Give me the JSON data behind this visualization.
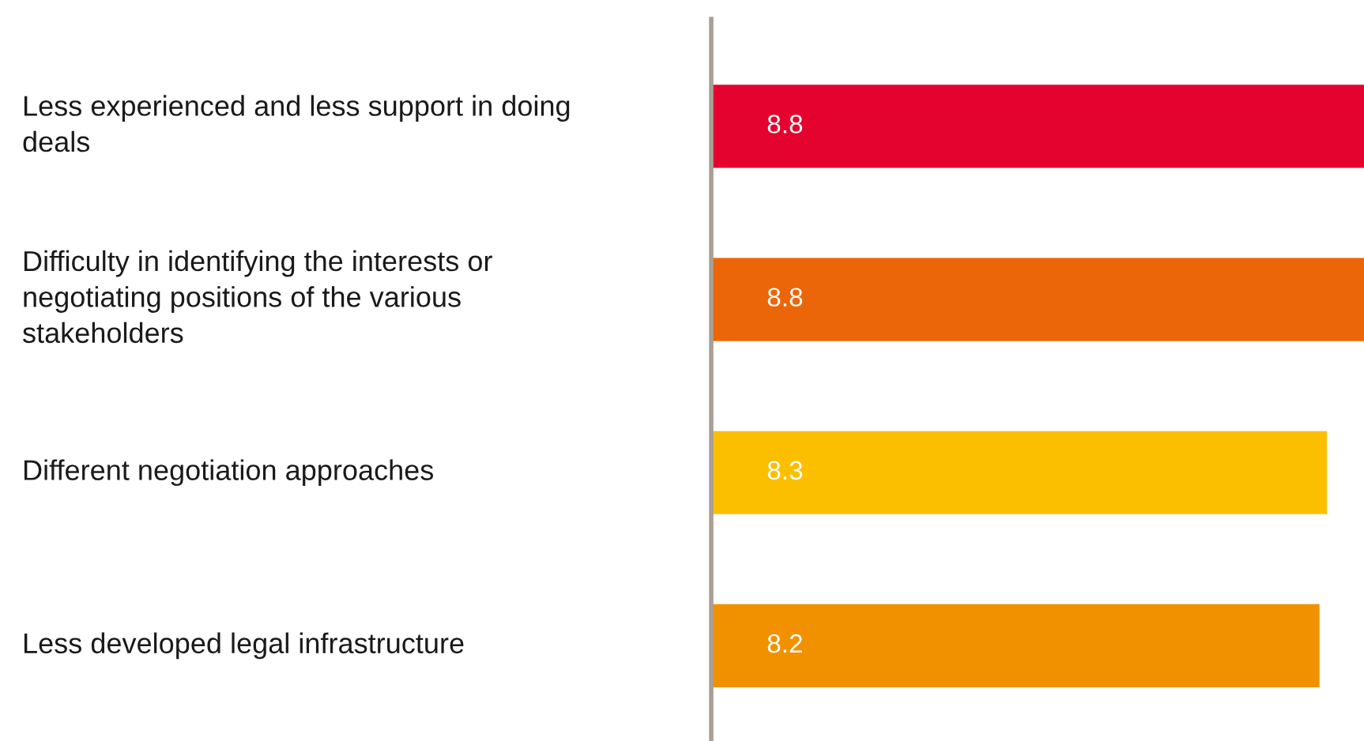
{
  "chart_data": {
    "type": "bar",
    "orientation": "horizontal",
    "data_labels": true,
    "tick_labels": false,
    "categories": [
      "Less experienced and less support in doing\ndeals",
      "Difficulty in identifying the interests or\nnegotiating positions of the various\nstakeholders",
      "Different negotiation approaches",
      "Less developed legal infrastructure"
    ],
    "values": [
      8.8,
      8.8,
      8.3,
      8.2
    ],
    "colors": [
      "#e4032e",
      "#eb6609",
      "#fbbf00",
      "#f29100"
    ]
  }
}
